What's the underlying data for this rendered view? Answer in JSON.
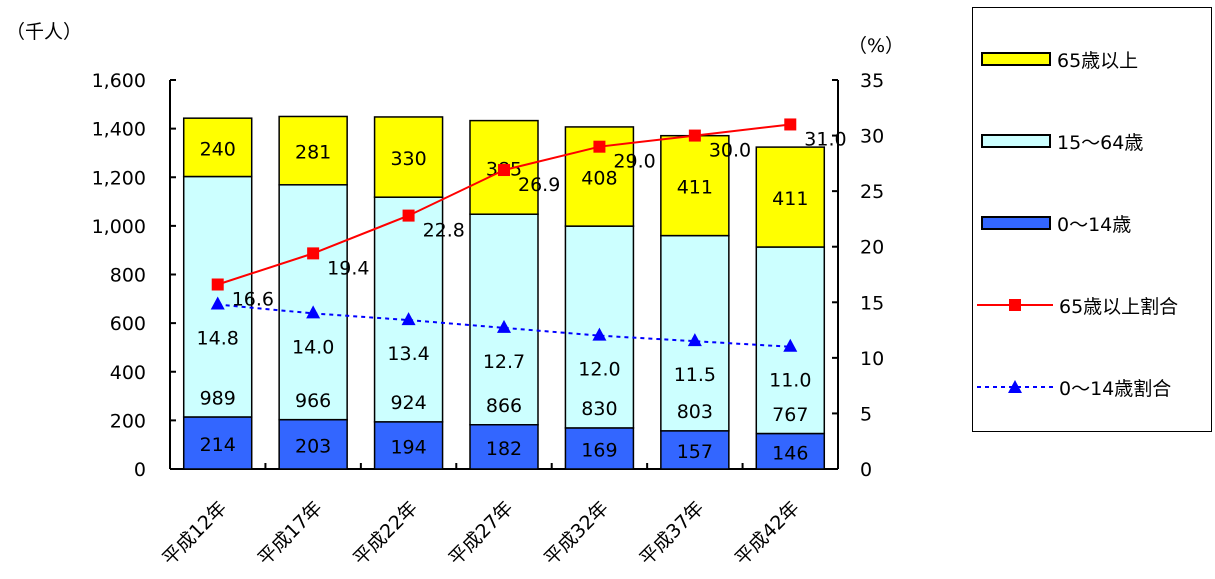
{
  "units": {
    "left": "（千人）",
    "right": "（%）"
  },
  "colors": {
    "age65": "#ffff00",
    "age15_64": "#ccffff",
    "age0_14": "#3366ff",
    "ratio65": "#ff0000",
    "ratio0_14": "#0000ff"
  },
  "legend": {
    "age65": "65歳以上",
    "age15_64": "15～64歳",
    "age0_14": "0～14歳",
    "ratio65": "65歳以上割合",
    "ratio0_14": "0～14歳割合"
  },
  "chart_data": {
    "type": "bar",
    "stacked": true,
    "categories": [
      "平成12年",
      "平成17年",
      "平成22年",
      "平成27年",
      "平成32年",
      "平成37年",
      "平成42年"
    ],
    "series": [
      {
        "name": "0～14歳",
        "values": [
          214,
          203,
          194,
          182,
          169,
          157,
          146
        ]
      },
      {
        "name": "15～64歳",
        "values": [
          989,
          966,
          924,
          866,
          830,
          803,
          767
        ]
      },
      {
        "name": "65歳以上",
        "values": [
          240,
          281,
          330,
          385,
          408,
          411,
          411
        ]
      }
    ],
    "line_series": [
      {
        "name": "65歳以上割合",
        "values": [
          16.6,
          19.4,
          22.8,
          26.9,
          29.0,
          30.0,
          31.0
        ],
        "axis": "right"
      },
      {
        "name": "0～14歳割合",
        "values": [
          14.8,
          14.0,
          13.4,
          12.7,
          12.0,
          11.5,
          11.0
        ],
        "axis": "right"
      }
    ],
    "y_ticks": [
      "0",
      "200",
      "400",
      "600",
      "800",
      "1,000",
      "1,200",
      "1,400",
      "1,600"
    ],
    "y2_ticks": [
      "0",
      "5",
      "10",
      "15",
      "20",
      "25",
      "30",
      "35"
    ],
    "ylim": [
      0,
      1600
    ],
    "y2lim": [
      0,
      35
    ],
    "legend_position": "right",
    "grid": false
  }
}
